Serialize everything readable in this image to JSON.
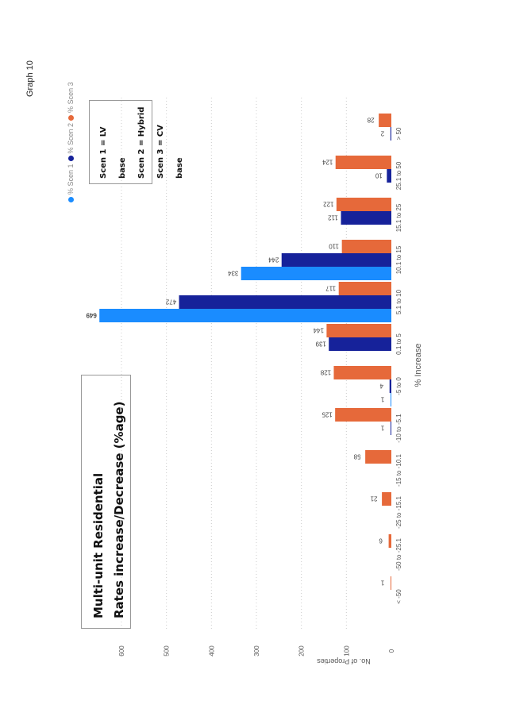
{
  "page_label": "Graph 10",
  "title_lines": [
    "Multi-unit Residential",
    "Rates increase/Decrease (%age)"
  ],
  "scenario_notes": [
    "Scen 1 = LV base",
    "Scen 2 = Hybrid",
    "Scen 3 = CV base"
  ],
  "chart_data": {
    "type": "bar",
    "orientation": "rotated 90 degrees counter-clockwise on page",
    "xlabel": "% Increase",
    "ylabel": "No. of Properties",
    "ylim": [
      0,
      600
    ],
    "yticks": [
      0,
      100,
      200,
      300,
      400,
      500,
      600
    ],
    "grid": true,
    "legend_placement": "top-left",
    "categories": [
      "< -50",
      "-50 to -25.1",
      "-25 to -15.1",
      "-15 to -10.1",
      "-10 to -5.1",
      "-5 to 0",
      "0.1 to 5",
      "5.1 to 10",
      "10.1 to 15",
      "15.1 to 25",
      "25.1 to 50",
      "> 50"
    ],
    "series": [
      {
        "name": "% Scen 1",
        "color": "#1a8cff",
        "values": [
          null,
          null,
          null,
          null,
          null,
          1,
          null,
          649,
          334,
          null,
          null,
          null
        ]
      },
      {
        "name": "% Scen 2",
        "color": "#16229a",
        "values": [
          null,
          null,
          null,
          null,
          1,
          4,
          139,
          472,
          244,
          112,
          10,
          2
        ]
      },
      {
        "name": "% Scen 3",
        "color": "#e6693a",
        "values": [
          1,
          6,
          21,
          58,
          125,
          128,
          144,
          117,
          110,
          122,
          124,
          28
        ]
      }
    ]
  }
}
